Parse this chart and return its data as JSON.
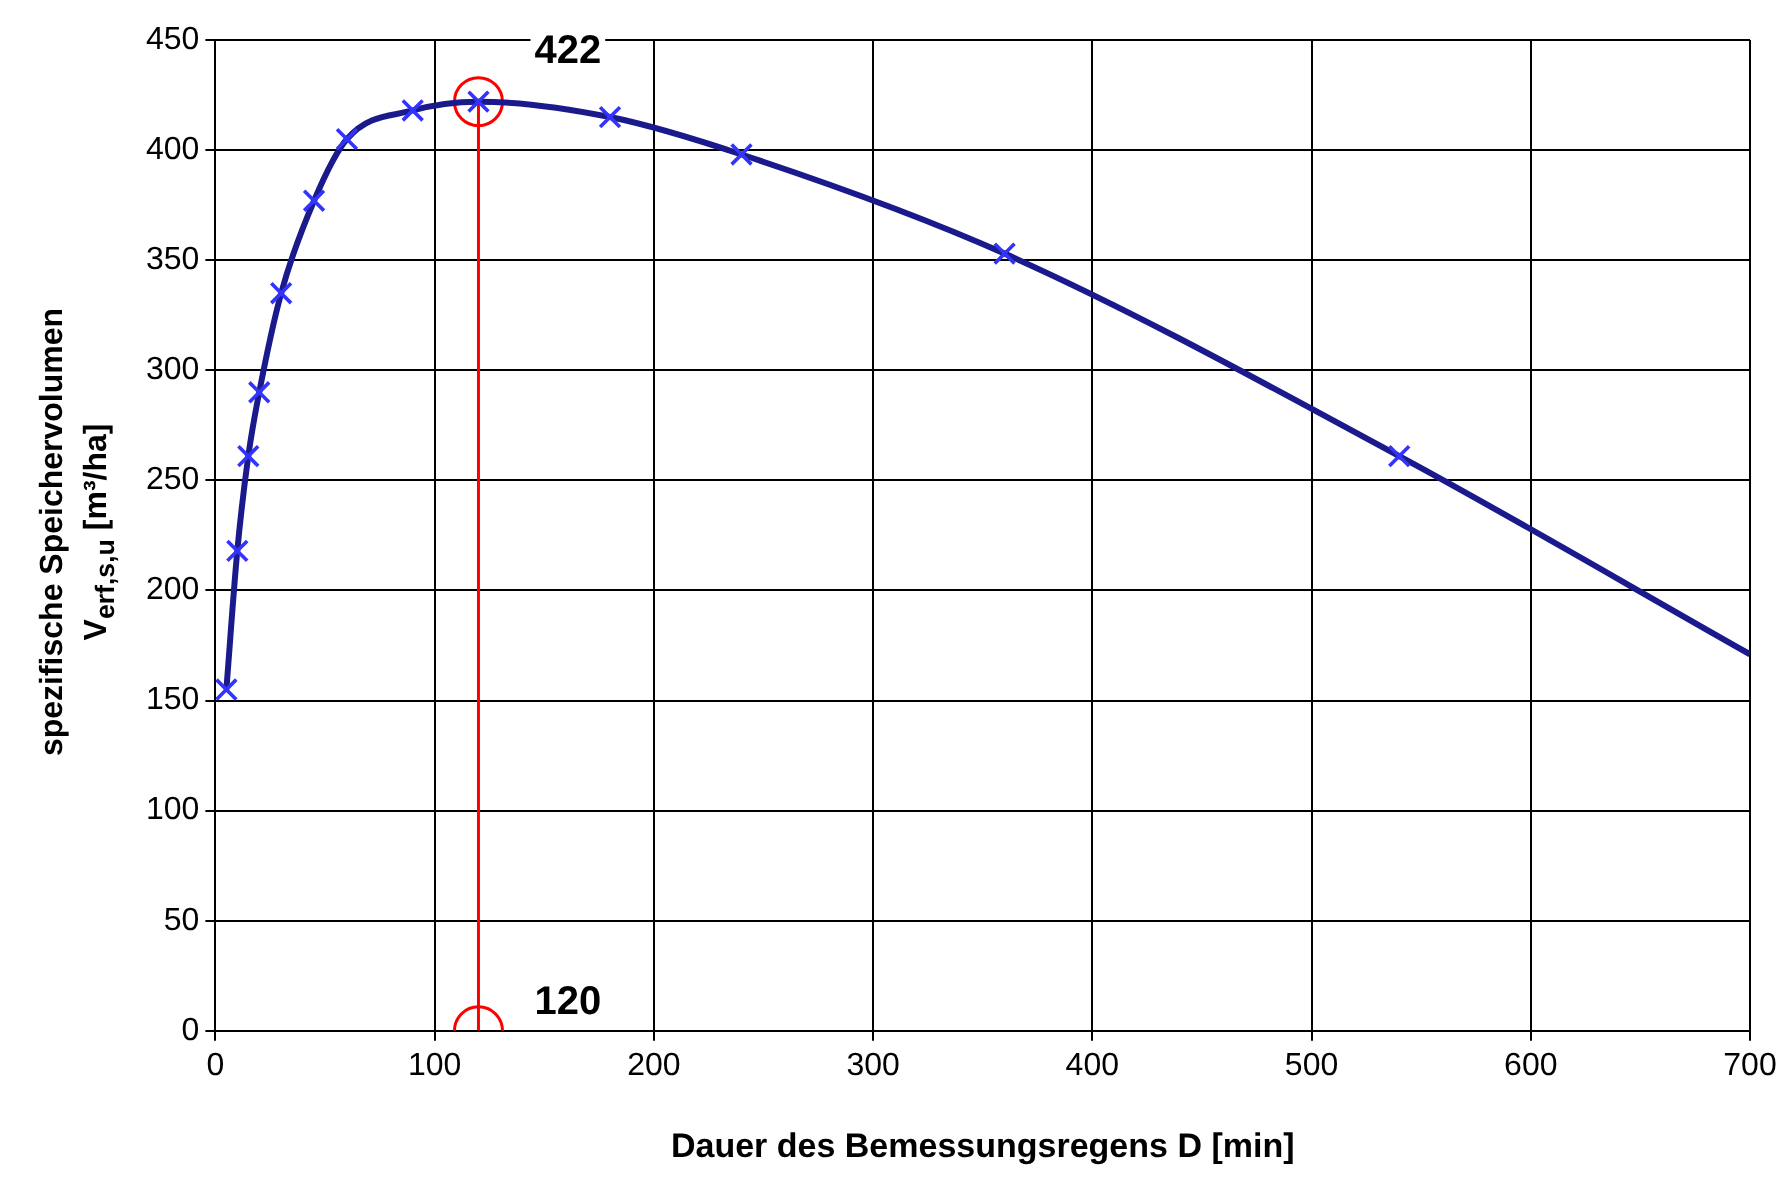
{
  "chart_data": {
    "type": "line",
    "xlabel": "Dauer des Bemessungsregens D [min]",
    "ylabel": "spezifische Speichervolumen\nV$_{erf,s,u}$ [m³/ha]",
    "xlim": [
      0,
      700
    ],
    "xticks": [
      0,
      100,
      200,
      300,
      400,
      500,
      600,
      700
    ],
    "ylim": [
      0,
      450
    ],
    "yticks": [
      0,
      50,
      100,
      150,
      200,
      250,
      300,
      350,
      400,
      450
    ],
    "grid": true,
    "legend": false,
    "series": [
      {
        "type": "line",
        "color": "#1a1a8c",
        "marker": "none",
        "x": [
          5,
          10,
          15,
          20,
          30,
          45,
          60,
          90,
          120,
          180,
          240,
          360,
          540,
          700
        ],
        "values": [
          155,
          218,
          261,
          290,
          335,
          377,
          405,
          418,
          422,
          415,
          398,
          353,
          261,
          171
        ]
      },
      {
        "type": "scatter",
        "color": "#3333ff",
        "marker": "cross",
        "x": [
          5,
          10,
          15,
          20,
          30,
          45,
          60,
          90,
          120,
          180,
          240,
          360,
          540
        ],
        "values": [
          155,
          218,
          261,
          290,
          335,
          377,
          405,
          418,
          422,
          415,
          398,
          353,
          261
        ]
      },
      {
        "type": "line",
        "color": "#ff0000",
        "marker": "circle",
        "x": [
          120,
          120
        ],
        "values": [
          0,
          422
        ]
      }
    ],
    "annotations": [
      {
        "text": "422",
        "x": 120,
        "y": 422
      },
      {
        "text": "120",
        "x": 120,
        "y": 0
      }
    ]
  }
}
